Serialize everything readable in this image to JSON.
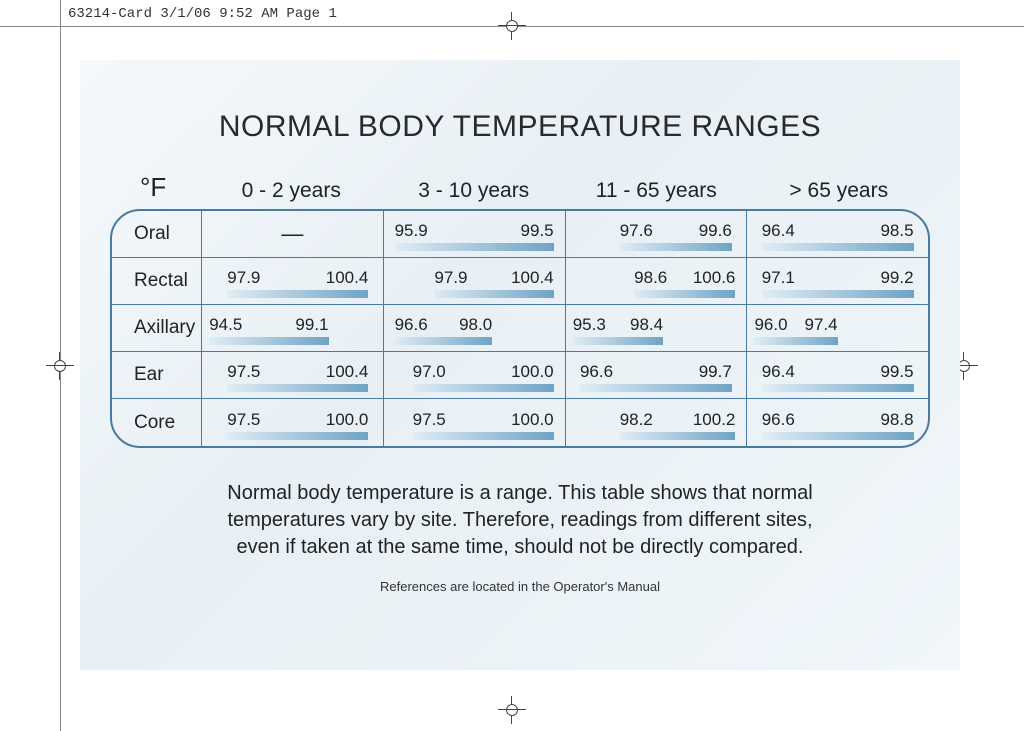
{
  "print_header": "63214-Card  3/1/06  9:52 AM  Page 1",
  "title": "NORMAL BODY TEMPERATURE RANGES",
  "unit_label": "°F",
  "age_groups": [
    "0  -  2 years",
    "3  -  10 years",
    "11  -  65 years",
    "> 65 years"
  ],
  "rows": [
    {
      "label": "Oral",
      "cells": [
        {
          "empty": true
        },
        {
          "lo": "95.9",
          "hi": "99.5",
          "bar_left_pct": 6,
          "bar_width_pct": 88,
          "val_left_pct": 6,
          "val_width_pct": 88
        },
        {
          "lo": "97.6",
          "hi": "99.6",
          "bar_left_pct": 30,
          "bar_width_pct": 62,
          "val_left_pct": 30,
          "val_width_pct": 62
        },
        {
          "lo": "96.4",
          "hi": "98.5",
          "bar_left_pct": 8,
          "bar_width_pct": 84,
          "val_left_pct": 8,
          "val_width_pct": 84
        }
      ]
    },
    {
      "label": "Rectal",
      "cells": [
        {
          "lo": "97.9",
          "hi": "100.4",
          "bar_left_pct": 14,
          "bar_width_pct": 78,
          "val_left_pct": 14,
          "val_width_pct": 78
        },
        {
          "lo": "97.9",
          "hi": "100.4",
          "bar_left_pct": 28,
          "bar_width_pct": 66,
          "val_left_pct": 28,
          "val_width_pct": 66
        },
        {
          "lo": "98.6",
          "hi": "100.6",
          "bar_left_pct": 38,
          "bar_width_pct": 56,
          "val_left_pct": 38,
          "val_width_pct": 56
        },
        {
          "lo": "97.1",
          "hi": "99.2",
          "bar_left_pct": 8,
          "bar_width_pct": 84,
          "val_left_pct": 8,
          "val_width_pct": 84
        }
      ]
    },
    {
      "label": "Axillary",
      "cells": [
        {
          "lo": "94.5",
          "hi": "99.1",
          "bar_left_pct": 4,
          "bar_width_pct": 66,
          "val_left_pct": 4,
          "val_width_pct": 66
        },
        {
          "lo": "96.6",
          "hi": "98.0",
          "bar_left_pct": 6,
          "bar_width_pct": 54,
          "val_left_pct": 6,
          "val_width_pct": 54
        },
        {
          "lo": "95.3",
          "hi": "98.4",
          "bar_left_pct": 4,
          "bar_width_pct": 50,
          "val_left_pct": 4,
          "val_width_pct": 50
        },
        {
          "lo": "96.0",
          "hi": "97.4",
          "bar_left_pct": 4,
          "bar_width_pct": 46,
          "val_left_pct": 4,
          "val_width_pct": 46
        }
      ]
    },
    {
      "label": "Ear",
      "cells": [
        {
          "lo": "97.5",
          "hi": "100.4",
          "bar_left_pct": 14,
          "bar_width_pct": 78,
          "val_left_pct": 14,
          "val_width_pct": 78
        },
        {
          "lo": "97.0",
          "hi": "100.0",
          "bar_left_pct": 16,
          "bar_width_pct": 78,
          "val_left_pct": 16,
          "val_width_pct": 78
        },
        {
          "lo": "96.6",
          "hi": "99.7",
          "bar_left_pct": 8,
          "bar_width_pct": 84,
          "val_left_pct": 8,
          "val_width_pct": 84
        },
        {
          "lo": "96.4",
          "hi": "99.5",
          "bar_left_pct": 8,
          "bar_width_pct": 84,
          "val_left_pct": 8,
          "val_width_pct": 84
        }
      ]
    },
    {
      "label": "Core",
      "cells": [
        {
          "lo": "97.5",
          "hi": "100.0",
          "bar_left_pct": 14,
          "bar_width_pct": 78,
          "val_left_pct": 14,
          "val_width_pct": 78
        },
        {
          "lo": "97.5",
          "hi": "100.0",
          "bar_left_pct": 16,
          "bar_width_pct": 78,
          "val_left_pct": 16,
          "val_width_pct": 78
        },
        {
          "lo": "98.2",
          "hi": "100.2",
          "bar_left_pct": 30,
          "bar_width_pct": 64,
          "val_left_pct": 30,
          "val_width_pct": 64
        },
        {
          "lo": "96.6",
          "hi": "98.8",
          "bar_left_pct": 8,
          "bar_width_pct": 84,
          "val_left_pct": 8,
          "val_width_pct": 84
        }
      ]
    }
  ],
  "description": "Normal body temperature is a range. This table shows that normal temperatures vary by site. Therefore, readings from different sites, even if taken at the same time, should not be directly compared.",
  "reference_note": "References are located in the Operator's Manual",
  "colors": {
    "border": "#4a7a9e",
    "bar_gradient_start": "rgba(200,225,240,0.3)",
    "bar_gradient_end": "#6fa3c4",
    "card_bg_1": "#f4f8fb",
    "card_bg_2": "#e8f0f5"
  }
}
